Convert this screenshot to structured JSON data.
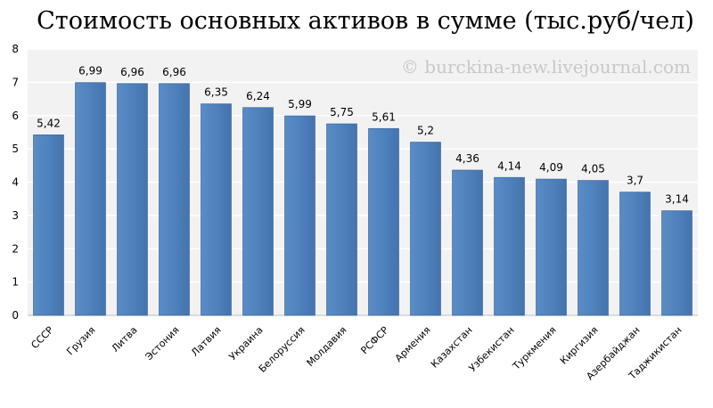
{
  "chart_data": {
    "type": "bar",
    "title": "Стоимость основных активов в сумме (тыс.руб/чел)",
    "watermark": "© burckina-new.livejournal.com",
    "categories": [
      "СССР",
      "Грузия",
      "Литва",
      "Эстония",
      "Латвия",
      "Украина",
      "Белоруссия",
      "Молдавия",
      "РСФСР",
      "Армения",
      "Казахстан",
      "Узбекистан",
      "Туркмения",
      "Киргизия",
      "Азербайджан",
      "Таджикистан"
    ],
    "values": [
      5.42,
      6.99,
      6.96,
      6.96,
      6.35,
      6.24,
      5.99,
      5.75,
      5.61,
      5.2,
      4.36,
      4.14,
      4.09,
      4.05,
      3.7,
      3.14
    ],
    "value_labels": [
      "5,42",
      "6,99",
      "6,96",
      "6,96",
      "6,35",
      "6,24",
      "5,99",
      "5,75",
      "5,61",
      "5,2",
      "4,36",
      "4,14",
      "4,09",
      "4,05",
      "3,7",
      "3,14"
    ],
    "yticks": [
      0,
      1,
      2,
      3,
      4,
      5,
      6,
      7,
      8
    ],
    "ylim": [
      0,
      8
    ],
    "xlabel": "",
    "ylabel": "",
    "grid": true,
    "colors": {
      "bar": "#4f81bd",
      "bar_edge": "#3a6aa3",
      "plot_bg": "#f2f2f2",
      "grid": "#ffffff"
    }
  }
}
